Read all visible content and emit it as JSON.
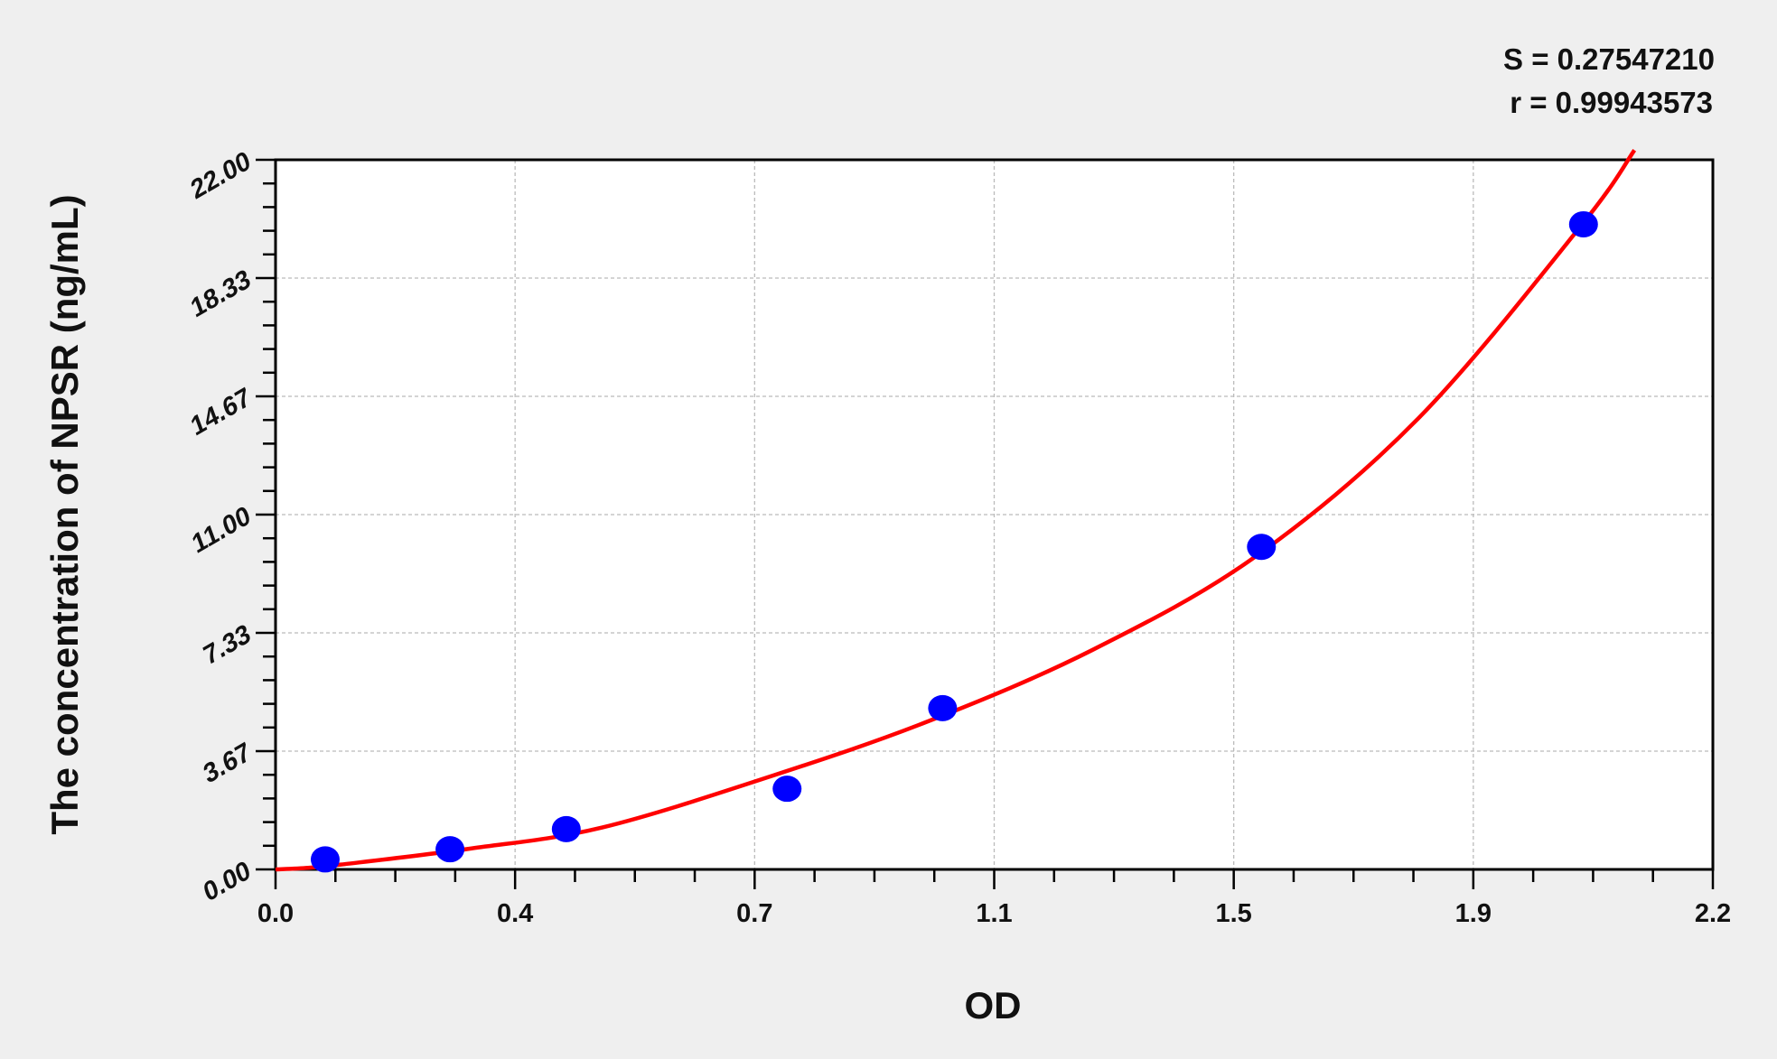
{
  "chart_data": {
    "type": "scatter",
    "title": "",
    "xlabel": "OD",
    "ylabel": "The concentration of NPSR  (ng/mL)",
    "xlim": [
      0,
      2.2
    ],
    "ylim": [
      0,
      22
    ],
    "x_tick_labels": [
      "0.0",
      "0.4",
      "0.7",
      "1.1",
      "1.5",
      "1.9",
      "2.2"
    ],
    "y_tick_labels": [
      "0.00",
      "3.67",
      "7.33",
      "11.00",
      "14.67",
      "18.33",
      "22.00"
    ],
    "grid": true,
    "annotations": [
      "S = 0.27547210",
      "r = 0.99943573"
    ],
    "points": {
      "x": [
        0.076,
        0.267,
        0.445,
        0.783,
        1.021,
        1.509,
        2.002
      ],
      "y": [
        0.31,
        0.625,
        1.25,
        2.5,
        5,
        10,
        20
      ],
      "color": "#0000ff"
    },
    "fit_curve": {
      "x": [
        0,
        0.05,
        0.1,
        0.3,
        0.5,
        0.76,
        1.0,
        1.25,
        1.5,
        1.75,
        2.0,
        2.08
      ],
      "y": [
        0,
        0.05,
        0.15,
        0.65,
        1.3,
        2.9,
        4.6,
        6.8,
        9.7,
        14.0,
        20.0,
        22.3
      ],
      "color": "#ff0000"
    }
  }
}
